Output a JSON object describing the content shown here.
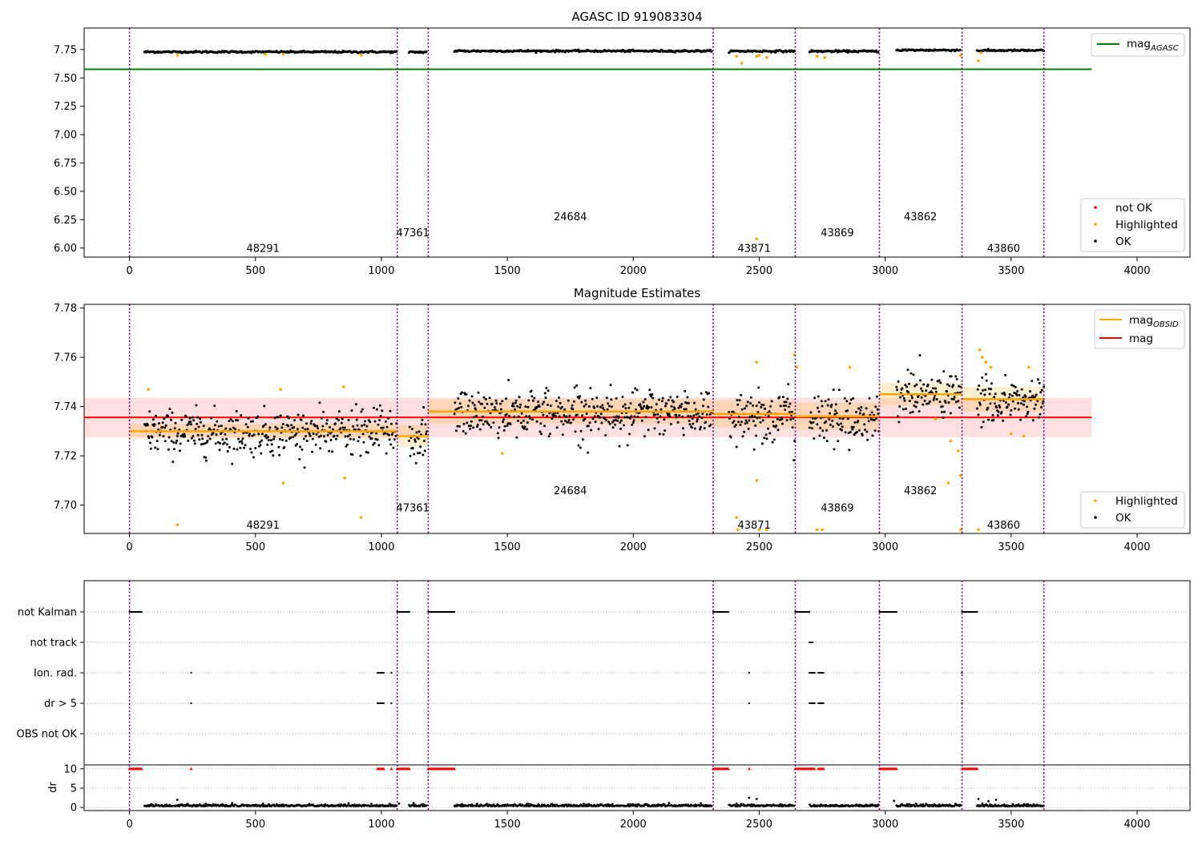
{
  "chart_data": [
    {
      "type": "scatter",
      "title": "AGASC ID 919083304",
      "xlim": [
        -180,
        4210
      ],
      "ylim": [
        5.92,
        7.94
      ],
      "xticks": [
        0,
        500,
        1000,
        1500,
        2000,
        2500,
        3000,
        3500,
        4000
      ],
      "yticks": [
        6.0,
        6.25,
        6.5,
        6.75,
        7.0,
        7.25,
        7.5,
        7.75
      ],
      "ytick_labels": [
        "6.00",
        "6.25",
        "6.50",
        "6.75",
        "7.00",
        "7.25",
        "7.50",
        "7.75"
      ],
      "obs_boundaries": [
        0,
        1063,
        1186,
        2317,
        2643,
        2977,
        3305,
        3630
      ],
      "observations": [
        {
          "obsid": "48291",
          "x_label": 530,
          "y_label": 6.0,
          "x_start": 0,
          "x_end": 1063,
          "mag": 7.73
        },
        {
          "obsid": "47361",
          "x_label": 1125,
          "y_label": 6.14,
          "x_start": 1063,
          "x_end": 1186,
          "mag": 7.728
        },
        {
          "obsid": "24684",
          "x_label": 1750,
          "y_label": 6.28,
          "x_start": 1186,
          "x_end": 2317,
          "mag": 7.738
        },
        {
          "obsid": "43871",
          "x_label": 2480,
          "y_label": 6.0,
          "x_start": 2317,
          "x_end": 2643,
          "mag": 7.737
        },
        {
          "obsid": "43869",
          "x_label": 2810,
          "y_label": 6.14,
          "x_start": 2643,
          "x_end": 2977,
          "mag": 7.736
        },
        {
          "obsid": "43862",
          "x_label": 3140,
          "y_label": 6.28,
          "x_start": 2977,
          "x_end": 3305,
          "mag": 7.745
        },
        {
          "obsid": "43860",
          "x_label": 3470,
          "y_label": 6.0,
          "x_start": 3305,
          "x_end": 3630,
          "mag": 7.743
        }
      ],
      "series": [
        {
          "name": "mag_AGASC",
          "type": "line",
          "x": [
            -180,
            3820
          ],
          "y": [
            7.576,
            7.576
          ],
          "color": "#008000"
        },
        {
          "name": "not OK",
          "type": "scatter",
          "color": "#ff0000"
        },
        {
          "name": "Highlighted",
          "type": "scatter",
          "color": "#ffa500"
        },
        {
          "name": "OK",
          "type": "scatter",
          "color": "#000000"
        }
      ],
      "legend_upper": [
        {
          "label": "mag",
          "sub": "AGASC",
          "color": "#008000"
        }
      ],
      "legend_lower": [
        {
          "label": "not OK",
          "color": "#ff0000"
        },
        {
          "label": "Highlighted",
          "color": "#ffa500"
        },
        {
          "label": "OK",
          "color": "#000000"
        }
      ]
    },
    {
      "type": "scatter",
      "title": "Magnitude Estimates",
      "xlim": [
        -180,
        4210
      ],
      "ylim": [
        7.6885,
        7.7815
      ],
      "xticks": [
        0,
        500,
        1000,
        1500,
        2000,
        2500,
        3000,
        3500,
        4000
      ],
      "yticks": [
        7.7,
        7.72,
        7.74,
        7.76,
        7.78
      ],
      "ytick_labels": [
        "7.70",
        "7.72",
        "7.74",
        "7.76",
        "7.78"
      ],
      "mag": 7.7356,
      "mag_band": [
        7.7276,
        7.7436
      ],
      "obsid_labels_y": [
        7.692,
        7.699,
        7.706,
        7.692,
        7.699,
        7.706,
        7.692
      ],
      "series": [
        {
          "name": "mag_OBSID",
          "type": "step",
          "color": "#ffa500"
        },
        {
          "name": "mag",
          "type": "line",
          "x": [
            -180,
            3820
          ],
          "y": [
            7.7356,
            7.7356
          ],
          "color": "#ff0000"
        },
        {
          "name": "Highlighted",
          "type": "scatter",
          "color": "#ffa500"
        },
        {
          "name": "OK",
          "type": "scatter",
          "color": "#000000"
        }
      ],
      "legend_upper": [
        {
          "label": "mag",
          "sub": "OBSID",
          "color": "#ffa500"
        },
        {
          "label": "mag",
          "sub": "",
          "color": "#ff0000"
        }
      ],
      "legend_lower": [
        {
          "label": "Highlighted",
          "color": "#ffa500"
        },
        {
          "label": "OK",
          "color": "#000000"
        }
      ]
    },
    {
      "type": "scatter",
      "title": "",
      "xlim": [
        -180,
        4210
      ],
      "flag_rows": [
        "not Kalman",
        "not track",
        "Ion. rad.",
        "dr > 5",
        "OBS not OK"
      ],
      "flag_ranges": [
        {
          "row": "not Kalman",
          "ranges": [
            [
              0,
              50
            ],
            [
              1063,
              1113
            ],
            [
              1186,
              1290
            ],
            [
              2317,
              2380
            ],
            [
              2643,
              2700
            ],
            [
              2977,
              3045
            ],
            [
              3305,
              3365
            ]
          ]
        },
        {
          "row": "not track",
          "ranges": [
            [
              2700,
              2715
            ]
          ]
        },
        {
          "row": "Ion. rad.",
          "ranges": [
            [
              245,
              245
            ],
            [
              985,
              1010
            ],
            [
              1040,
              1040
            ],
            [
              2460,
              2460
            ],
            [
              2700,
              2720
            ],
            [
              2735,
              2755
            ],
            [
              3305,
              3305
            ]
          ]
        },
        {
          "row": "dr > 5",
          "ranges": [
            [
              245,
              245
            ],
            [
              985,
              1010
            ],
            [
              1040,
              1040
            ],
            [
              2460,
              2460
            ],
            [
              2700,
              2720
            ],
            [
              2735,
              2755
            ],
            [
              3305,
              3305
            ]
          ]
        },
        {
          "row": "OBS not OK",
          "ranges": []
        }
      ],
      "dr_ylabel": "dr",
      "dr_yticks": [
        0,
        5,
        10
      ],
      "dr_ylim": [
        -0.8,
        11
      ],
      "dr_above_10": [
        [
          0,
          50
        ],
        [
          245,
          245
        ],
        [
          985,
          1010
        ],
        [
          1040,
          1040
        ],
        [
          1063,
          1113
        ],
        [
          1186,
          1290
        ],
        [
          2317,
          2380
        ],
        [
          2460,
          2460
        ],
        [
          2643,
          2720
        ],
        [
          2735,
          2755
        ],
        [
          2977,
          3045
        ],
        [
          3305,
          3365
        ]
      ],
      "dr_spikes": [
        [
          190,
          2.0
        ],
        [
          530,
          1.0
        ],
        [
          1070,
          1.0
        ],
        [
          2410,
          1.0
        ],
        [
          2460,
          2.5
        ],
        [
          2490,
          2.2
        ],
        [
          3035,
          1.7
        ],
        [
          3370,
          2.2
        ],
        [
          3410,
          1.6
        ],
        [
          3440,
          2.0
        ]
      ]
    }
  ]
}
